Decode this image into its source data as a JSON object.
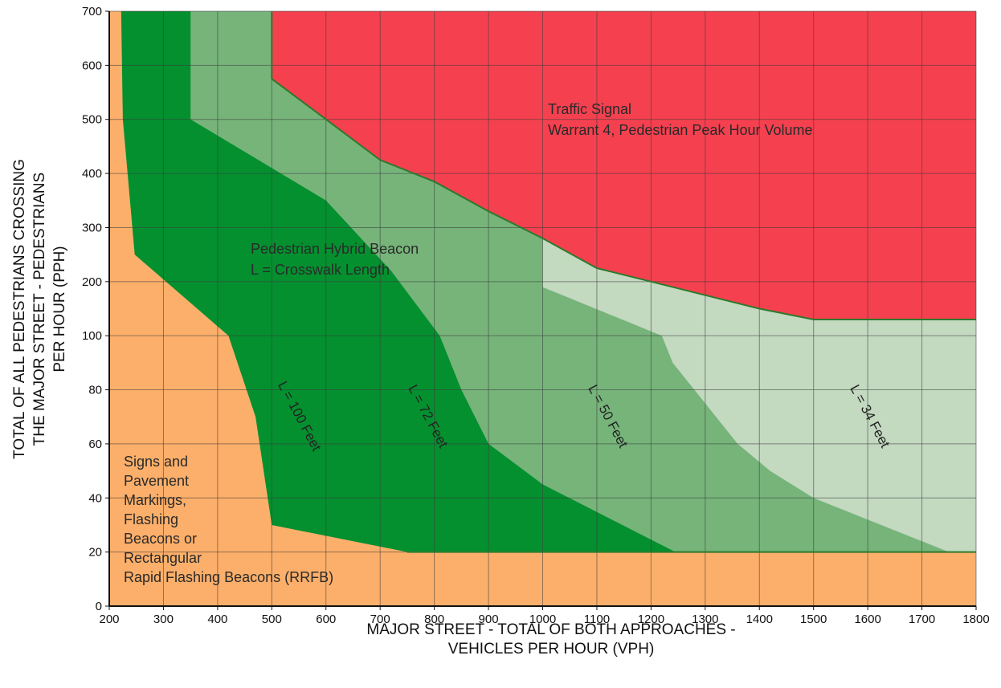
{
  "chart_data": {
    "type": "area",
    "title": "",
    "xlabel_lines": [
      "MAJOR STREET - TOTAL OF BOTH APPROACHES -",
      "VEHICLES PER HOUR (VPH)"
    ],
    "ylabel_lines": [
      "TOTAL OF ALL PEDESTRIANS CROSSING",
      "THE MAJOR STREET - PEDESTRIANS",
      "PER HOUR (PPH)"
    ],
    "x_ticks": [
      200,
      300,
      400,
      500,
      600,
      700,
      800,
      900,
      1000,
      1100,
      1200,
      1300,
      1400,
      1500,
      1600,
      1700,
      1800
    ],
    "y_ticks": [
      0,
      20,
      40,
      60,
      80,
      100,
      200,
      300,
      400,
      500,
      600,
      700
    ],
    "xlim": [
      200,
      1800
    ],
    "ylim": [
      0,
      700
    ],
    "grid": true,
    "colors": {
      "signs_region": "#fcaf6a",
      "l100": "#04902f",
      "l72": "#76b47a",
      "l50": "#a5c6a3",
      "l34": "#c3d9c0",
      "signal_region": "#f5404f",
      "boundary_line": "#2d7a2d",
      "grid_line": "#3a3a3a"
    },
    "regions": [
      {
        "key": "l100",
        "boundary": [
          [
            250,
            700
          ],
          [
            250,
            500
          ],
          [
            350,
            400
          ],
          [
            410,
            300
          ],
          [
            505,
            100
          ],
          [
            550,
            100
          ],
          [
            590,
            80
          ],
          [
            630,
            60
          ],
          [
            745,
            25
          ],
          [
            750,
            20
          ]
        ]
      },
      {
        "key": "l72",
        "boundary": [
          [
            350,
            700
          ],
          [
            350,
            500
          ],
          [
            600,
            350
          ],
          [
            720,
            220
          ],
          [
            810,
            100
          ],
          [
            850,
            80
          ],
          [
            900,
            60
          ],
          [
            1000,
            45
          ],
          [
            1245,
            20
          ]
        ]
      },
      {
        "key": "l50",
        "boundary": [
          [
            500,
            700
          ],
          [
            1000,
            290
          ],
          [
            1000,
            190
          ],
          [
            1220,
            100
          ],
          [
            1240,
            90
          ],
          [
            1360,
            60
          ],
          [
            1420,
            50
          ],
          [
            1500,
            40
          ],
          [
            1750,
            20
          ]
        ]
      },
      {
        "key": "l34",
        "boundary": [
          [
            1800,
            700
          ],
          [
            1800,
            20
          ]
        ]
      },
      {
        "key": "signs_region",
        "boundary": [
          [
            222,
            700
          ],
          [
            225,
            500
          ],
          [
            247,
            250
          ],
          [
            420,
            100
          ],
          [
            470,
            70
          ],
          [
            500,
            30
          ],
          [
            750,
            20
          ],
          [
            1800,
            20
          ]
        ]
      }
    ],
    "signal_boundary": [
      [
        500,
        700
      ],
      [
        500,
        575
      ],
      [
        600,
        500
      ],
      [
        700,
        425
      ],
      [
        800,
        385
      ],
      [
        900,
        330
      ],
      [
        1000,
        280
      ],
      [
        1100,
        225
      ],
      [
        1200,
        200
      ],
      [
        1300,
        175
      ],
      [
        1400,
        150
      ],
      [
        1500,
        130
      ],
      [
        1800,
        130
      ]
    ],
    "lower_boundary": [
      [
        750,
        20
      ],
      [
        1800,
        20
      ]
    ],
    "annotations": {
      "signal": [
        "Traffic Signal",
        "Warrant 4, Pedestrian Peak Hour Volume"
      ],
      "beacon": [
        "Pedestrian Hybrid Beacon",
        "L = Crosswalk Length"
      ],
      "signs": [
        "Signs and",
        "Pavement",
        "Markings,",
        "Flashing",
        "Beacons or",
        "Rectangular",
        "Rapid Flashing Beacons (RRFB)"
      ],
      "zones": [
        "L = 100 Feet",
        "L = 72 Feet",
        "L = 50 Feet",
        "L = 34 Feet"
      ]
    }
  }
}
